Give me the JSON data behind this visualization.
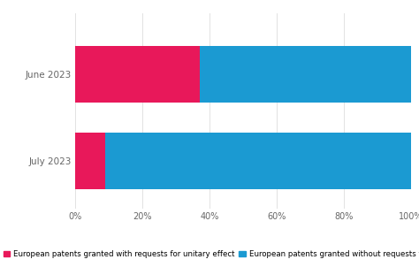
{
  "categories": [
    "June 2023",
    "July 2023"
  ],
  "with_unitary": [
    0.37,
    0.09
  ],
  "without_unitary": [
    0.63,
    0.91
  ],
  "color_with": "#E8185A",
  "color_without": "#1B9AD2",
  "legend_with": "European patents granted with requests for unitary effect",
  "legend_without": "European patents granted without requests for unitary effect",
  "xlim": [
    0,
    1
  ],
  "xticks": [
    0,
    0.2,
    0.4,
    0.6,
    0.8,
    1.0
  ],
  "xticklabels": [
    "0%",
    "20%",
    "40%",
    "60%",
    "80%",
    "100%"
  ],
  "background_color": "#ffffff",
  "bar_height": 0.65,
  "tick_fontsize": 7,
  "legend_fontsize": 6.2,
  "ytick_fontsize": 7.5
}
